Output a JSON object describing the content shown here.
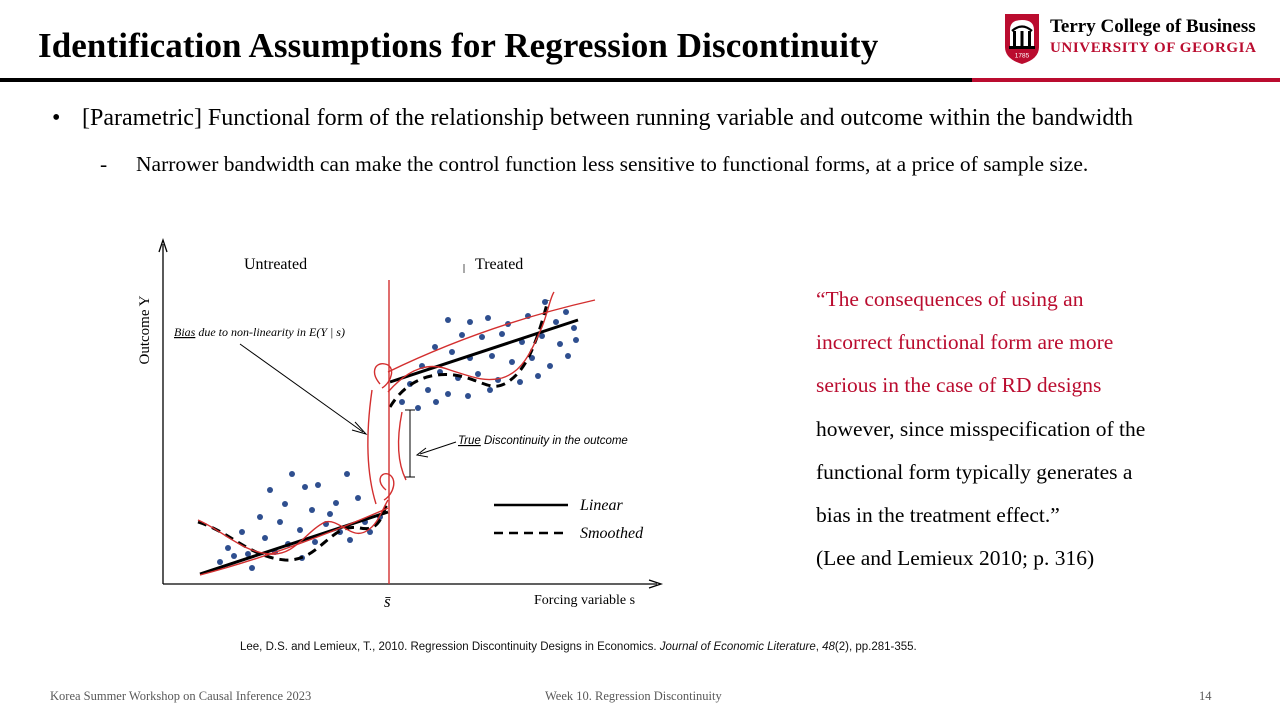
{
  "slide": {
    "title": "Identification Assumptions for Regression Discontinuity",
    "logo": {
      "name": "Terry College of Business",
      "university": "UNIVERSITY OF GEORGIA",
      "year": "1785"
    },
    "bullets": [
      {
        "marker": "•",
        "text": "[Parametric] Functional form of the relationship between running variable and outcome within the bandwidth"
      },
      {
        "marker": "-",
        "text": "Narrower bandwidth can make the control function less sensitive to functional forms, at a price of sample size."
      }
    ],
    "figure": {
      "label_untreated": "Untreated",
      "label_treated": "Treated",
      "ylabel": "Outcome Y",
      "xlabel": "Forcing variable s",
      "cutoff_label": "s̄",
      "bias_label_underlined": "Bias",
      "bias_label_rest": " due to non-linearity in E(Y | s)",
      "true_label_underlined": "True",
      "true_label_rest": " Discontinuity in the outcome",
      "legend": [
        {
          "label": "Linear",
          "style": "solid"
        },
        {
          "label": "Smoothed",
          "style": "dashed"
        }
      ],
      "colors": {
        "annotation": "#d32f2f",
        "dots": "#2f4f8f"
      }
    },
    "quote": {
      "red_lines": [
        "“The consequences of using an",
        "incorrect functional form are more",
        "serious in the case of RD designs"
      ],
      "black_lines": [
        "however, since misspecification of the",
        "functional form typically generates a",
        "bias in the treatment effect.”"
      ],
      "citation": "(Lee and Lemieux 2010; p. 316)"
    },
    "reference": {
      "pre": "Lee, D.S. and Lemieux, T., 2010. Regression Discontinuity Designs in Economics. ",
      "journal": "Journal of Economic Literature",
      "sep": ", ",
      "volume": "48",
      "post": "(2), pp.281-355."
    },
    "footer": {
      "left": "Korea Summer Workshop on Causal Inference 2023",
      "center": "Week 10. Regression Discontinuity",
      "page": "14"
    },
    "accent_color": "#ba0c2f"
  }
}
